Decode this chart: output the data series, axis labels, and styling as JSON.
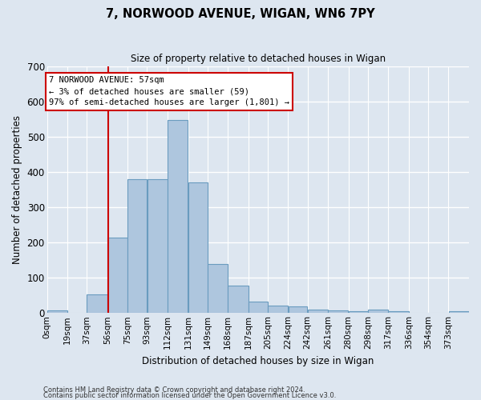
{
  "title": "7, NORWOOD AVENUE, WIGAN, WN6 7PY",
  "subtitle": "Size of property relative to detached houses in Wigan",
  "xlabel": "Distribution of detached houses by size in Wigan",
  "ylabel": "Number of detached properties",
  "bar_color": "#aec6de",
  "bar_edge_color": "#6a9cbf",
  "background_color": "#dde6f0",
  "grid_color": "#ffffff",
  "annotation_box_color": "#cc0000",
  "annotation_line1": "7 NORWOOD AVENUE: 57sqm",
  "annotation_line2": "← 3% of detached houses are smaller (59)",
  "annotation_line3": "97% of semi-detached houses are larger (1,801) →",
  "property_line_x": 57,
  "categories": [
    "0sqm",
    "19sqm",
    "37sqm",
    "56sqm",
    "75sqm",
    "93sqm",
    "112sqm",
    "131sqm",
    "149sqm",
    "168sqm",
    "187sqm",
    "205sqm",
    "224sqm",
    "242sqm",
    "261sqm",
    "280sqm",
    "298sqm",
    "317sqm",
    "336sqm",
    "354sqm",
    "373sqm"
  ],
  "bar_heights": [
    7,
    0,
    52,
    215,
    380,
    380,
    547,
    370,
    140,
    77,
    33,
    22,
    18,
    10,
    8,
    5,
    10,
    5,
    0,
    0,
    5
  ],
  "bin_edges": [
    0,
    19,
    37,
    56,
    75,
    93,
    112,
    131,
    149,
    168,
    187,
    205,
    224,
    242,
    261,
    280,
    298,
    317,
    336,
    354,
    373,
    392
  ],
  "ylim": [
    0,
    700
  ],
  "yticks": [
    0,
    100,
    200,
    300,
    400,
    500,
    600,
    700
  ],
  "footnote1": "Contains HM Land Registry data © Crown copyright and database right 2024.",
  "footnote2": "Contains public sector information licensed under the Open Government Licence v3.0."
}
